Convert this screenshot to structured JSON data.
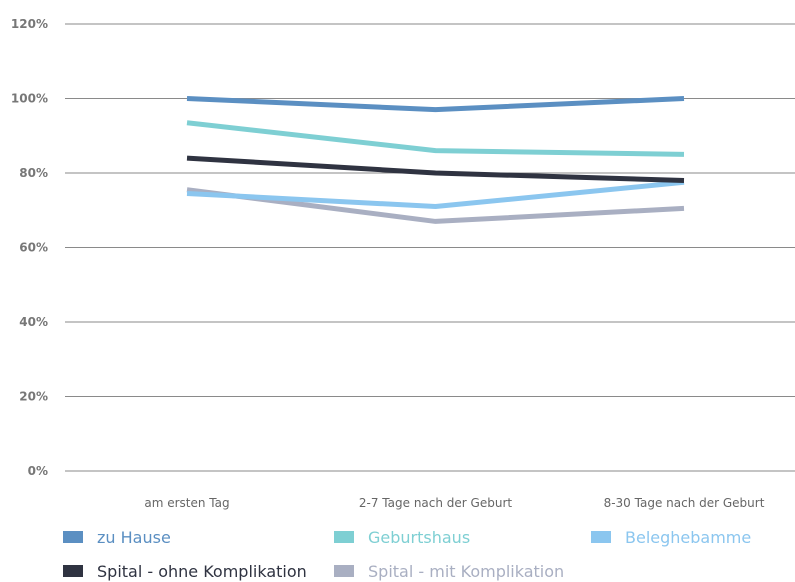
{
  "chart_data": {
    "type": "line",
    "title": "",
    "xlabel": "",
    "ylabel": "",
    "categories": [
      "am ersten Tag",
      "2-7 Tage nach der Geburt",
      "8-30 Tage nach der Geburt"
    ],
    "ylim": [
      0,
      120
    ],
    "yticks": [
      0,
      20,
      40,
      60,
      80,
      100,
      120
    ],
    "ytick_labels": [
      "0%",
      "20%",
      "40%",
      "60%",
      "80%",
      "100%",
      "120%"
    ],
    "grid": true,
    "legend_position": "bottom",
    "series": [
      {
        "name": "zu Hause",
        "values": [
          100,
          97,
          100
        ],
        "color": "#5b8fc2",
        "label_color": "#5b8fc2"
      },
      {
        "name": "Geburtshaus",
        "values": [
          93.5,
          86,
          85
        ],
        "color": "#7ecfd3",
        "label_color": "#7ecfd3"
      },
      {
        "name": "Beleghebamme",
        "values": [
          74.5,
          71,
          77.5
        ],
        "color": "#8bc6ef",
        "label_color": "#8bc6ef"
      },
      {
        "name": "Spital - ohne Komplikation",
        "values": [
          84,
          80,
          78
        ],
        "color": "#2f3341",
        "label_color": "#2f3341"
      },
      {
        "name": "Spital - mit Komplikation",
        "values": [
          75.5,
          67,
          70.5
        ],
        "color": "#a9afc2",
        "label_color": "#a9afc2"
      }
    ]
  }
}
